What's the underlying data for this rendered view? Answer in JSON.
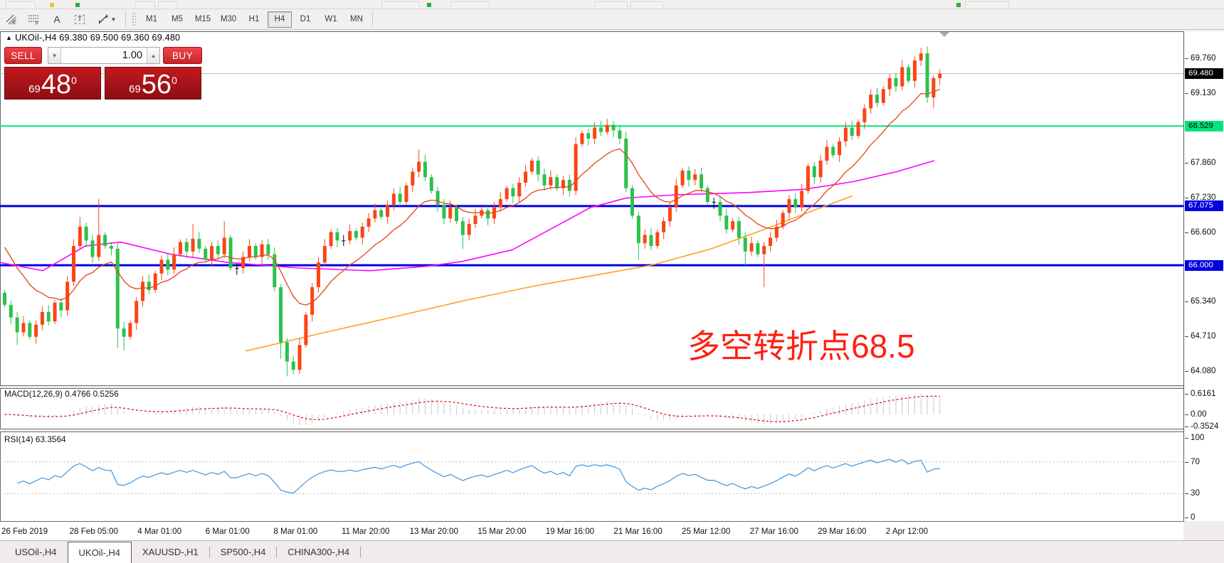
{
  "toolbar": {
    "icons": [
      {
        "name": "equidistant-channel-icon",
        "tag": "E"
      },
      {
        "name": "fibonacci-retracement-icon",
        "tag": "F"
      },
      {
        "name": "text-tool-icon",
        "tag": "A"
      },
      {
        "name": "text-label-icon",
        "tag": "T"
      },
      {
        "name": "arrow-style-icon",
        "tag": ""
      }
    ],
    "timeframes": [
      {
        "label": "M1",
        "active": false
      },
      {
        "label": "M5",
        "active": false
      },
      {
        "label": "M15",
        "active": false
      },
      {
        "label": "M30",
        "active": false
      },
      {
        "label": "H1",
        "active": false
      },
      {
        "label": "H4",
        "active": true
      },
      {
        "label": "D1",
        "active": false
      },
      {
        "label": "W1",
        "active": false
      },
      {
        "label": "MN",
        "active": false
      }
    ]
  },
  "chart_header": {
    "arrow": "▲",
    "text": "UKOil-,H4  69.380 69.500 69.360 69.480"
  },
  "trade_panel": {
    "sell_label": "SELL",
    "buy_label": "BUY",
    "volume": "1.00",
    "spin_down": "▼",
    "spin_up": "▲",
    "sell_price": {
      "prefix": "69",
      "big": "48",
      "sup": "0"
    },
    "buy_price": {
      "prefix": "69",
      "big": "56",
      "sup": "0"
    }
  },
  "annotation": {
    "text": "多空转折点68.5",
    "color": "#ff2012"
  },
  "main_chart": {
    "price_ticks": [
      {
        "v": 69.76,
        "label": "69.760"
      },
      {
        "v": 69.13,
        "label": "69.130"
      },
      {
        "v": 67.86,
        "label": "67.860"
      },
      {
        "v": 67.23,
        "label": "67.230"
      },
      {
        "v": 66.6,
        "label": "66.600"
      },
      {
        "v": 65.34,
        "label": "65.340"
      },
      {
        "v": 64.71,
        "label": "64.710"
      },
      {
        "v": 64.08,
        "label": "64.080"
      }
    ],
    "price_lines": [
      {
        "v": 69.48,
        "label": "69.480",
        "name": "current-price-line",
        "line": "#bcbcbc",
        "width": 1,
        "badge_bg": "#000000",
        "badge_fg": "#ffffff"
      },
      {
        "v": 68.529,
        "label": "68.529",
        "name": "resistance-line",
        "line": "#00e57d",
        "width": 2,
        "badge_bg": "#00e57d",
        "badge_fg": "#000000"
      },
      {
        "v": 67.075,
        "label": "67.075",
        "name": "support-line-1",
        "line": "#0000e0",
        "width": 3,
        "badge_bg": "#0000e0",
        "badge_fg": "#ffffff"
      },
      {
        "v": 66.0,
        "label": "66.000",
        "name": "support-line-2",
        "line": "#0000e0",
        "width": 3,
        "badge_bg": "#0000e0",
        "badge_fg": "#ffffff"
      }
    ],
    "colors": {
      "up_candle": "#fa4517",
      "down_candle": "#2cc14e",
      "doji_candle": "#000000",
      "ma_fast": "#e64214",
      "ma_medium": "#ff00ff",
      "ma_slow": "#ffa01e",
      "panel_border": "#6b6b6b",
      "end_marker": "#aaaaaa"
    },
    "ma_medium_points": [
      [
        0,
        66.05
      ],
      [
        60,
        65.9
      ],
      [
        120,
        66.35
      ],
      [
        170,
        66.42
      ],
      [
        240,
        66.2
      ],
      [
        320,
        66.05
      ],
      [
        420,
        65.95
      ],
      [
        520,
        65.9
      ],
      [
        600,
        65.98
      ],
      [
        650,
        66.07
      ],
      [
        720,
        66.28
      ],
      [
        780,
        66.7
      ],
      [
        830,
        67.05
      ],
      [
        880,
        67.22
      ],
      [
        950,
        67.28
      ],
      [
        1050,
        67.32
      ],
      [
        1130,
        67.38
      ],
      [
        1200,
        67.52
      ],
      [
        1260,
        67.7
      ],
      [
        1313,
        67.9
      ]
    ],
    "ma_slow_points": [
      [
        345,
        64.44
      ],
      [
        450,
        64.76
      ],
      [
        550,
        65.05
      ],
      [
        650,
        65.35
      ],
      [
        750,
        65.62
      ],
      [
        850,
        65.85
      ],
      [
        915,
        66.0
      ],
      [
        1000,
        66.3
      ],
      [
        1080,
        66.68
      ],
      [
        1140,
        66.98
      ],
      [
        1198,
        67.26
      ]
    ],
    "ma_fast_cfg": {
      "period": 13,
      "seed": 66.5
    }
  },
  "chart_data": {
    "type": "candlestick",
    "symbol": "UKOil-",
    "timeframe": "H4",
    "first_open": 65.5,
    "closes": [
      65.28,
      65.05,
      64.78,
      64.95,
      64.7,
      64.92,
      65.15,
      64.98,
      65.32,
      65.18,
      65.7,
      66.35,
      66.7,
      66.45,
      66.15,
      66.55,
      66.35,
      66.3,
      64.85,
      64.7,
      64.95,
      65.35,
      65.7,
      65.55,
      65.85,
      66.1,
      65.92,
      66.2,
      66.42,
      66.25,
      66.48,
      66.3,
      66.1,
      66.35,
      66.2,
      66.5,
      65.95,
      65.95,
      66.15,
      66.35,
      66.15,
      66.38,
      66.2,
      65.6,
      64.6,
      64.25,
      64.1,
      64.55,
      65.1,
      65.6,
      66.05,
      66.35,
      66.6,
      66.45,
      66.45,
      66.62,
      66.5,
      66.7,
      66.85,
      67.0,
      66.88,
      67.1,
      67.3,
      67.15,
      67.45,
      67.7,
      67.88,
      67.6,
      67.35,
      67.1,
      66.85,
      67.05,
      66.8,
      66.55,
      66.75,
      66.9,
      67.0,
      66.85,
      67.05,
      67.2,
      67.4,
      67.25,
      67.5,
      67.7,
      67.9,
      67.65,
      67.45,
      67.6,
      67.4,
      67.55,
      67.35,
      68.2,
      68.4,
      68.3,
      68.5,
      68.42,
      68.55,
      68.45,
      68.3,
      67.4,
      66.9,
      66.4,
      66.55,
      66.35,
      66.6,
      66.8,
      67.05,
      67.45,
      67.72,
      67.55,
      67.65,
      67.4,
      67.15,
      67.15,
      66.9,
      66.65,
      66.8,
      66.5,
      66.25,
      66.4,
      66.2,
      66.35,
      66.5,
      66.7,
      66.95,
      67.2,
      67.05,
      67.35,
      67.8,
      67.6,
      67.9,
      68.15,
      68.0,
      68.25,
      68.5,
      68.35,
      68.6,
      68.85,
      69.1,
      68.95,
      69.2,
      69.4,
      69.25,
      69.6,
      69.35,
      69.72,
      69.85,
      69.05,
      69.4,
      69.48
    ],
    "wick_high_overrides": {
      "12": 66.88,
      "15": 67.2,
      "30": 66.75,
      "35": 66.8,
      "66": 68.1,
      "96": 68.66,
      "146": 69.95
    },
    "wick_low_overrides": {
      "2": 64.55,
      "18": 64.5,
      "19": 64.45,
      "44": 64.3,
      "45": 63.98,
      "46": 64.02,
      "73": 66.3,
      "101": 66.1,
      "118": 66.0,
      "121": 65.6,
      "147": 68.95,
      "148": 68.85
    }
  },
  "macd_panel": {
    "label": "MACD(12,26,9) 0.4766 0.5256",
    "params": {
      "fast": 12,
      "slow": 26,
      "signal": 9
    },
    "ticks": [
      {
        "v": 0.6161,
        "label": "0.6161"
      },
      {
        "v": 0.0,
        "label": "0.00"
      },
      {
        "v": -0.3524,
        "label": "-0.3524"
      }
    ],
    "hist_color": "#c9c9c9",
    "signal_color": "#dd0000"
  },
  "rsi_panel": {
    "label": "RSI(14) 63.3564",
    "params": {
      "period": 14
    },
    "ticks": [
      {
        "v": 100,
        "label": "100"
      },
      {
        "v": 70,
        "label": "70"
      },
      {
        "v": 30,
        "label": "30"
      },
      {
        "v": 0,
        "label": "0"
      }
    ],
    "levels": [
      70,
      30
    ],
    "line_color": "#3d96e0",
    "level_color": "#bbbbbb"
  },
  "time_axis": {
    "labels": [
      "26 Feb 2019",
      "28 Feb 05:00",
      "4 Mar 01:00",
      "6 Mar 01:00",
      "8 Mar 01:00",
      "11 Mar 20:00",
      "13 Mar 20:00",
      "15 Mar 20:00",
      "19 Mar 16:00",
      "21 Mar 16:00",
      "25 Mar 12:00",
      "27 Mar 16:00",
      "29 Mar 16:00",
      "2 Apr 12:00"
    ]
  },
  "tabs": [
    {
      "label": "USOil-,H4",
      "active": false
    },
    {
      "label": "UKOil-,H4",
      "active": true
    },
    {
      "label": "XAUUSD-,H1",
      "active": false
    },
    {
      "label": "SP500-,H4",
      "active": false
    },
    {
      "label": "CHINA300-,H4",
      "active": false
    }
  ]
}
